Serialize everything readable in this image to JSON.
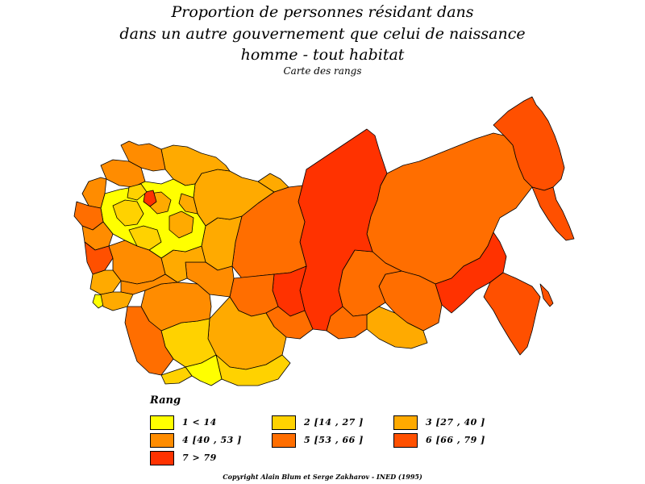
{
  "title": {
    "line1": "Proportion de personnes résidant dans",
    "line2": "dans un autre gouvernement que celui de naissance",
    "line3": "homme - tout habitat",
    "subtitle": "Carte des rangs"
  },
  "legend": {
    "title": "Rang",
    "items": [
      {
        "label": "1 < 14",
        "color": "#ffff00"
      },
      {
        "label": "2 [14 , 27 ]",
        "color": "#ffd200"
      },
      {
        "label": "3 [27 , 40 ]",
        "color": "#ffaa00"
      },
      {
        "label": "4 [40 , 53 ]",
        "color": "#ff8c00"
      },
      {
        "label": "5 [53 , 66 ]",
        "color": "#ff6e00"
      },
      {
        "label": "6 [66 , 79 ]",
        "color": "#ff5000"
      },
      {
        "label": "7 > 79",
        "color": "#ff3200"
      }
    ]
  },
  "copyright": "Copyright Alain Blum et Serge Zakharov - INED (1995)"
}
